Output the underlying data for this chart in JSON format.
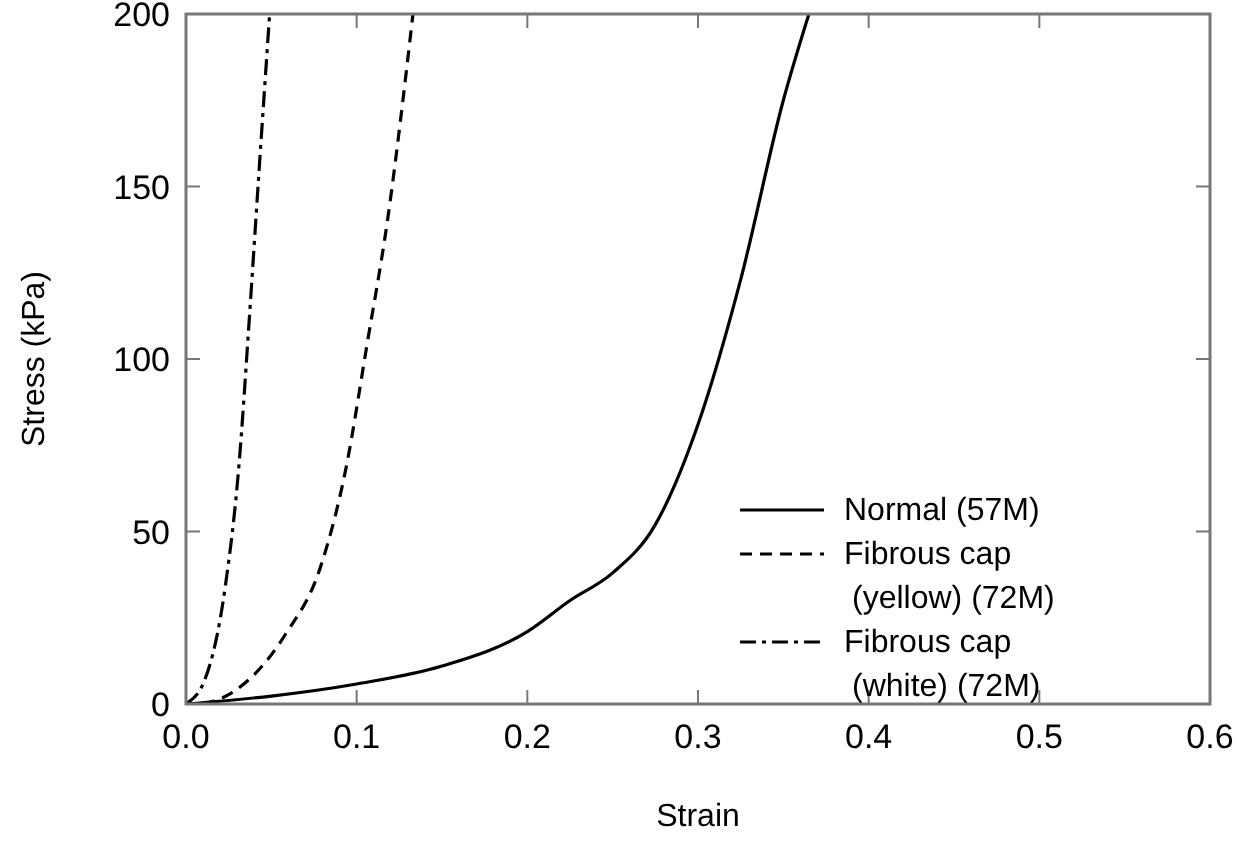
{
  "chart_data": {
    "type": "line",
    "xlabel": "Strain",
    "ylabel": "Stress (kPa)",
    "xlim": [
      0,
      0.6
    ],
    "xticks": [
      {
        "value": 0,
        "label": "0.0"
      },
      0.1,
      0.2,
      0.3,
      0.4,
      0.5,
      0.6
    ],
    "ylim": [
      0,
      200
    ],
    "yticks": [
      0,
      50,
      100,
      150,
      200
    ],
    "grid": false,
    "legend": "right",
    "series": [
      {
        "name": "Normal (57M)",
        "color": "#000000",
        "line_style": "solid",
        "x": [
          0,
          0.05,
          0.1,
          0.15,
          0.2,
          0.225,
          0.25,
          0.275,
          0.3,
          0.325,
          0.35,
          0.365
        ],
        "values": [
          0,
          2.3,
          5.8,
          11,
          21,
          30,
          38,
          52,
          81,
          123,
          175,
          200
        ]
      },
      {
        "name": "Fibrous cap\n(yellow) (72M)",
        "color": "#000000",
        "line_style": "dashed",
        "x": [
          0.01,
          0.026,
          0.058,
          0.079,
          0.094,
          0.106,
          0.118,
          0.133
        ],
        "values": [
          0,
          3,
          20,
          40,
          69,
          104,
          140,
          200
        ]
      },
      {
        "name": "Fibrous cap\n(white) (72M)",
        "color": "#000000",
        "line_style": "dashdot",
        "x": [
          0,
          0.011,
          0.023,
          0.031,
          0.037,
          0.043,
          0.049
        ],
        "values": [
          0,
          7,
          34,
          69,
          111,
          156,
          200
        ]
      }
    ]
  }
}
